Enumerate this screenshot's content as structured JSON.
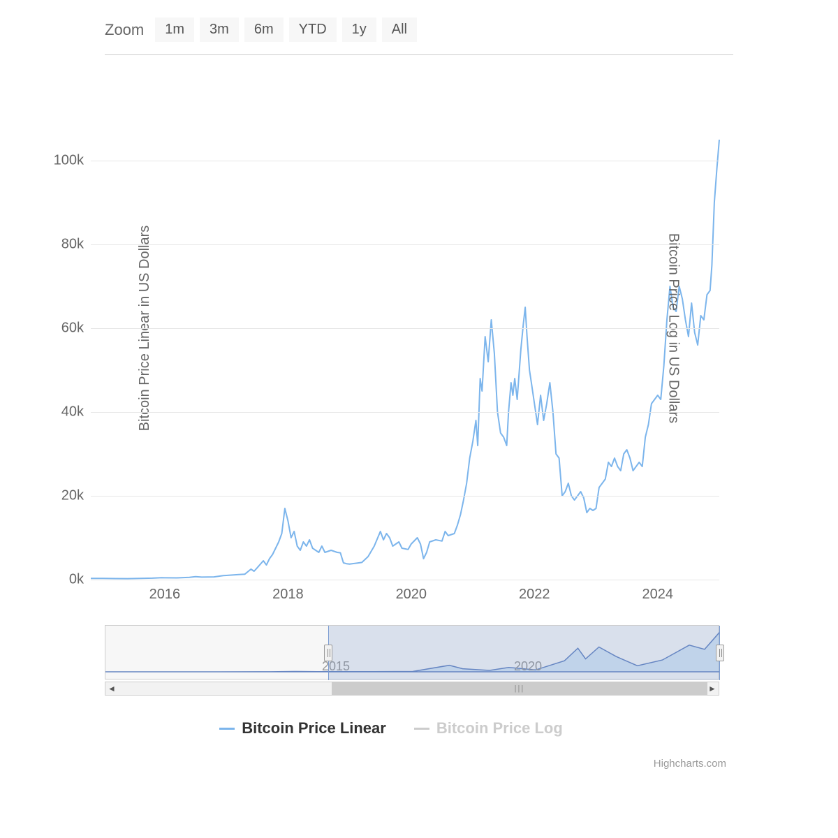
{
  "chart": {
    "type": "line",
    "toolbar": {
      "zoom_label": "Zoom",
      "buttons": [
        "1m",
        "3m",
        "6m",
        "YTD",
        "1y",
        "All"
      ]
    },
    "y_axis_left": {
      "label": "Bitcoin Price Linear in US Dollars",
      "ticks": [
        0,
        20,
        40,
        60,
        80,
        100
      ],
      "tick_suffix": "k",
      "min": 0,
      "max": 120
    },
    "y_axis_right": {
      "label": "Bitcoin Price Log in US Dollars"
    },
    "x_axis": {
      "ticks": [
        2016,
        2018,
        2020,
        2022,
        2024
      ],
      "min": 2014.8,
      "max": 2025.0
    },
    "grid_color": "#e6e6e6",
    "background_color": "#ffffff",
    "series_linear": {
      "name": "Bitcoin Price Linear",
      "color": "#7cb5ec",
      "line_width": 2,
      "data": [
        [
          2014.8,
          0.3
        ],
        [
          2015.0,
          0.3
        ],
        [
          2015.2,
          0.25
        ],
        [
          2015.4,
          0.24
        ],
        [
          2015.6,
          0.28
        ],
        [
          2015.8,
          0.35
        ],
        [
          2015.95,
          0.45
        ],
        [
          2016.0,
          0.43
        ],
        [
          2016.2,
          0.42
        ],
        [
          2016.4,
          0.55
        ],
        [
          2016.5,
          0.7
        ],
        [
          2016.6,
          0.6
        ],
        [
          2016.8,
          0.65
        ],
        [
          2016.95,
          0.95
        ],
        [
          2017.0,
          1.0
        ],
        [
          2017.1,
          1.1
        ],
        [
          2017.2,
          1.2
        ],
        [
          2017.3,
          1.3
        ],
        [
          2017.4,
          2.5
        ],
        [
          2017.45,
          2.0
        ],
        [
          2017.5,
          2.8
        ],
        [
          2017.6,
          4.5
        ],
        [
          2017.65,
          3.5
        ],
        [
          2017.7,
          5.0
        ],
        [
          2017.75,
          6.0
        ],
        [
          2017.8,
          7.5
        ],
        [
          2017.85,
          9.0
        ],
        [
          2017.9,
          11.0
        ],
        [
          2017.95,
          17.0
        ],
        [
          2018.0,
          14.0
        ],
        [
          2018.05,
          10.0
        ],
        [
          2018.1,
          11.5
        ],
        [
          2018.15,
          8.0
        ],
        [
          2018.2,
          7.0
        ],
        [
          2018.25,
          9.0
        ],
        [
          2018.3,
          8.0
        ],
        [
          2018.35,
          9.5
        ],
        [
          2018.4,
          7.5
        ],
        [
          2018.5,
          6.5
        ],
        [
          2018.55,
          8.0
        ],
        [
          2018.6,
          6.5
        ],
        [
          2018.7,
          7.0
        ],
        [
          2018.8,
          6.5
        ],
        [
          2018.85,
          6.4
        ],
        [
          2018.9,
          4.0
        ],
        [
          2018.95,
          3.8
        ],
        [
          2019.0,
          3.7
        ],
        [
          2019.1,
          3.9
        ],
        [
          2019.2,
          4.1
        ],
        [
          2019.3,
          5.5
        ],
        [
          2019.4,
          8.0
        ],
        [
          2019.5,
          11.5
        ],
        [
          2019.55,
          9.5
        ],
        [
          2019.6,
          11.0
        ],
        [
          2019.65,
          10.0
        ],
        [
          2019.7,
          8.0
        ],
        [
          2019.8,
          9.0
        ],
        [
          2019.85,
          7.5
        ],
        [
          2019.95,
          7.2
        ],
        [
          2020.0,
          8.5
        ],
        [
          2020.1,
          10.0
        ],
        [
          2020.15,
          8.5
        ],
        [
          2020.2,
          5.0
        ],
        [
          2020.25,
          6.5
        ],
        [
          2020.3,
          9.0
        ],
        [
          2020.4,
          9.5
        ],
        [
          2020.5,
          9.2
        ],
        [
          2020.55,
          11.5
        ],
        [
          2020.6,
          10.5
        ],
        [
          2020.7,
          11.0
        ],
        [
          2020.75,
          13.0
        ],
        [
          2020.8,
          15.5
        ],
        [
          2020.85,
          19.0
        ],
        [
          2020.9,
          23.0
        ],
        [
          2020.95,
          29.0
        ],
        [
          2021.0,
          33.0
        ],
        [
          2021.05,
          38.0
        ],
        [
          2021.08,
          32.0
        ],
        [
          2021.12,
          48.0
        ],
        [
          2021.15,
          45.0
        ],
        [
          2021.2,
          58.0
        ],
        [
          2021.25,
          52.0
        ],
        [
          2021.3,
          62.0
        ],
        [
          2021.35,
          54.0
        ],
        [
          2021.4,
          40.0
        ],
        [
          2021.45,
          35.0
        ],
        [
          2021.5,
          34.0
        ],
        [
          2021.55,
          32.0
        ],
        [
          2021.58,
          40.0
        ],
        [
          2021.62,
          47.0
        ],
        [
          2021.65,
          44.0
        ],
        [
          2021.68,
          48.0
        ],
        [
          2021.72,
          43.0
        ],
        [
          2021.78,
          55.0
        ],
        [
          2021.82,
          61.0
        ],
        [
          2021.85,
          65.0
        ],
        [
          2021.88,
          58.0
        ],
        [
          2021.92,
          50.0
        ],
        [
          2021.95,
          47.0
        ],
        [
          2022.0,
          42.0
        ],
        [
          2022.05,
          37.0
        ],
        [
          2022.1,
          44.0
        ],
        [
          2022.15,
          38.0
        ],
        [
          2022.2,
          42.0
        ],
        [
          2022.25,
          47.0
        ],
        [
          2022.3,
          40.0
        ],
        [
          2022.35,
          30.0
        ],
        [
          2022.4,
          29.0
        ],
        [
          2022.45,
          20.0
        ],
        [
          2022.5,
          21.0
        ],
        [
          2022.55,
          23.0
        ],
        [
          2022.6,
          20.0
        ],
        [
          2022.65,
          19.0
        ],
        [
          2022.7,
          20.0
        ],
        [
          2022.75,
          21.0
        ],
        [
          2022.8,
          19.5
        ],
        [
          2022.85,
          16.0
        ],
        [
          2022.9,
          17.0
        ],
        [
          2022.95,
          16.5
        ],
        [
          2023.0,
          17.0
        ],
        [
          2023.05,
          22.0
        ],
        [
          2023.1,
          23.0
        ],
        [
          2023.15,
          24.0
        ],
        [
          2023.2,
          28.0
        ],
        [
          2023.25,
          27.0
        ],
        [
          2023.3,
          29.0
        ],
        [
          2023.35,
          27.0
        ],
        [
          2023.4,
          26.0
        ],
        [
          2023.45,
          30.0
        ],
        [
          2023.5,
          31.0
        ],
        [
          2023.55,
          29.0
        ],
        [
          2023.6,
          26.0
        ],
        [
          2023.65,
          27.0
        ],
        [
          2023.7,
          28.0
        ],
        [
          2023.75,
          27.0
        ],
        [
          2023.8,
          34.0
        ],
        [
          2023.85,
          37.0
        ],
        [
          2023.9,
          42.0
        ],
        [
          2023.95,
          43.0
        ],
        [
          2024.0,
          44.0
        ],
        [
          2024.05,
          43.0
        ],
        [
          2024.1,
          51.0
        ],
        [
          2024.15,
          62.0
        ],
        [
          2024.2,
          70.0
        ],
        [
          2024.25,
          65.0
        ],
        [
          2024.3,
          64.0
        ],
        [
          2024.35,
          70.0
        ],
        [
          2024.4,
          67.0
        ],
        [
          2024.45,
          62.0
        ],
        [
          2024.5,
          58.0
        ],
        [
          2024.55,
          66.0
        ],
        [
          2024.6,
          59.0
        ],
        [
          2024.65,
          56.0
        ],
        [
          2024.7,
          63.0
        ],
        [
          2024.75,
          62.0
        ],
        [
          2024.8,
          68.0
        ],
        [
          2024.85,
          69.0
        ],
        [
          2024.88,
          75.0
        ],
        [
          2024.92,
          90.0
        ],
        [
          2024.96,
          98.0
        ],
        [
          2025.0,
          105.0
        ]
      ]
    },
    "series_log": {
      "name": "Bitcoin Price Log",
      "color": "#cccccc",
      "visible": false
    },
    "navigator": {
      "x_min": 2009.0,
      "x_max": 2025.0,
      "selection_start": 2014.8,
      "selection_end": 2025.0,
      "ticks": [
        2015,
        2020
      ],
      "series_color": "#6685c2",
      "mask_color": "rgba(102,133,194,0.2)",
      "data": [
        [
          2009.0,
          0.0
        ],
        [
          2010.0,
          0.0
        ],
        [
          2011.0,
          0.02
        ],
        [
          2011.5,
          0.03
        ],
        [
          2012.0,
          0.01
        ],
        [
          2013.0,
          0.1
        ],
        [
          2013.3,
          0.25
        ],
        [
          2013.9,
          1.0
        ],
        [
          2014.0,
          0.9
        ],
        [
          2014.5,
          0.6
        ],
        [
          2015.0,
          0.3
        ],
        [
          2016.0,
          0.43
        ],
        [
          2017.0,
          1.0
        ],
        [
          2017.95,
          17.0
        ],
        [
          2018.3,
          8.0
        ],
        [
          2019.0,
          3.7
        ],
        [
          2019.5,
          11.5
        ],
        [
          2020.2,
          5.0
        ],
        [
          2020.95,
          29.0
        ],
        [
          2021.3,
          62.0
        ],
        [
          2021.5,
          34.0
        ],
        [
          2021.85,
          65.0
        ],
        [
          2022.3,
          40.0
        ],
        [
          2022.85,
          16.0
        ],
        [
          2023.5,
          31.0
        ],
        [
          2024.2,
          70.0
        ],
        [
          2024.6,
          59.0
        ],
        [
          2025.0,
          105.0
        ]
      ]
    },
    "legend": {
      "items": [
        {
          "label": "Bitcoin Price Linear",
          "color": "#7cb5ec",
          "active": true
        },
        {
          "label": "Bitcoin Price Log",
          "color": "#cccccc",
          "active": false
        }
      ]
    },
    "credits": "Highcharts.com"
  }
}
